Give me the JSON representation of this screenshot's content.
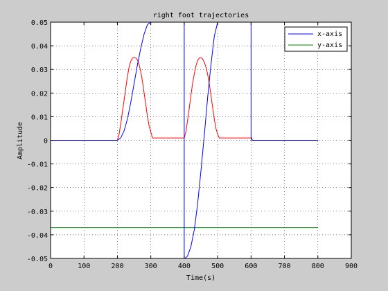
{
  "chart_data": {
    "type": "line",
    "title": "right foot trajectories",
    "xlabel": "Time(s)",
    "ylabel": "Amplitude",
    "xlim": [
      0,
      900
    ],
    "ylim": [
      -0.05,
      0.05
    ],
    "grid": true,
    "legend_position": "top-right",
    "xticks": [
      0,
      100,
      200,
      300,
      400,
      500,
      600,
      700,
      800,
      900
    ],
    "yticks": [
      -0.05,
      -0.04,
      -0.03,
      -0.02,
      -0.01,
      0,
      0.01,
      0.02,
      0.03,
      0.04,
      0.05
    ],
    "xtick_labels": [
      "0",
      "100",
      "200",
      "300",
      "400",
      "500",
      "600",
      "700",
      "800",
      "900"
    ],
    "ytick_labels": [
      "-0.05",
      "-0.04",
      "-0.03",
      "-0.02",
      "-0.01",
      "0",
      "0.01",
      "0.02",
      "0.03",
      "0.04",
      "0.05"
    ],
    "series": [
      {
        "name": "x-axis",
        "color": "#0000ff",
        "x": [
          0,
          200,
          210,
          220,
          230,
          240,
          250,
          260,
          270,
          280,
          290,
          300,
          301,
          399,
          400,
          400,
          402,
          402,
          410,
          420,
          430,
          440,
          450,
          460,
          470,
          480,
          490,
          500,
          501,
          599,
          600,
          600,
          602,
          602,
          800
        ],
        "y": [
          0,
          0,
          0.001,
          0.004,
          0.009,
          0.016,
          0.024,
          0.032,
          0.039,
          0.045,
          0.049,
          0.05,
          0.05,
          0.05,
          0.05,
          -0.05,
          -0.05,
          -0.05,
          -0.049,
          -0.045,
          -0.038,
          -0.027,
          -0.013,
          0.002,
          0.018,
          0.032,
          0.044,
          0.05,
          0.05,
          0.05,
          0.05,
          0.001,
          0.001,
          0,
          0
        ]
      },
      {
        "name": "y-axis",
        "color": "#008000",
        "x": [
          0,
          800
        ],
        "y": [
          -0.037,
          -0.037
        ]
      },
      {
        "color": "#ff0000",
        "x": [
          0,
          200,
          205,
          210,
          215,
          220,
          225,
          230,
          235,
          240,
          245,
          250,
          255,
          260,
          265,
          270,
          275,
          280,
          285,
          290,
          295,
          300,
          305,
          400,
          405,
          410,
          415,
          420,
          425,
          430,
          435,
          440,
          445,
          450,
          455,
          460,
          465,
          470,
          475,
          480,
          485,
          490,
          495,
          500,
          505,
          600,
          605,
          800
        ],
        "y": [
          0,
          0,
          0.0025,
          0.007,
          0.012,
          0.017,
          0.022,
          0.027,
          0.031,
          0.0335,
          0.0348,
          0.035,
          0.0348,
          0.034,
          0.032,
          0.029,
          0.025,
          0.02,
          0.015,
          0.01,
          0.006,
          0.0035,
          0.001,
          0.001,
          0.0035,
          0.0085,
          0.0135,
          0.019,
          0.024,
          0.028,
          0.0315,
          0.0338,
          0.0348,
          0.035,
          0.0345,
          0.033,
          0.031,
          0.028,
          0.024,
          0.019,
          0.014,
          0.009,
          0.005,
          0.0025,
          0.001,
          0.001,
          0,
          0
        ]
      }
    ]
  }
}
